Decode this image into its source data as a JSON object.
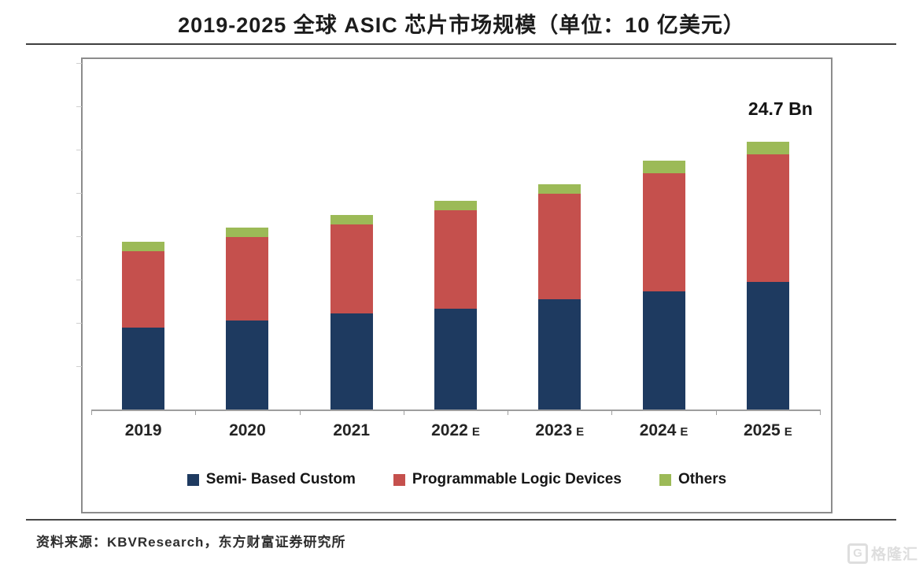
{
  "page": {
    "title": "2019-2025 全球 ASIC 芯片市场规模（单位：10 亿美元）",
    "source": "资料来源：KBVResearch，东方财富证券研究所",
    "watermark": "格隆汇",
    "watermark_logo": "G"
  },
  "chart_data": {
    "type": "bar",
    "stacked": true,
    "title": "2019-2025 全球 ASIC 芯片市场规模（单位：10 亿美元）",
    "xlabel": "",
    "ylabel": "",
    "ylim": [
      0,
      32
    ],
    "grid": false,
    "legend_position": "bottom",
    "categories": [
      "2019",
      "2020",
      "2021",
      "2022 E",
      "2023 E",
      "2024 E",
      "2025 E"
    ],
    "series": [
      {
        "name": "Semi- Based Custom",
        "color": "#1e3a60",
        "values": [
          7.6,
          8.2,
          8.9,
          9.3,
          10.2,
          10.9,
          11.8
        ]
      },
      {
        "name": "Programmable Logic Devices",
        "color": "#c5504d",
        "values": [
          7.0,
          7.7,
          8.2,
          9.1,
          9.7,
          10.9,
          11.8
        ]
      },
      {
        "name": "Others",
        "color": "#9cba57",
        "values": [
          0.9,
          0.9,
          0.9,
          0.9,
          0.9,
          1.2,
          1.1
        ]
      }
    ],
    "totals": [
      15.5,
      16.8,
      18.0,
      19.3,
      20.8,
      23.0,
      24.7
    ],
    "annotation": {
      "text": "24.7 Bn",
      "category_index": 6
    }
  }
}
